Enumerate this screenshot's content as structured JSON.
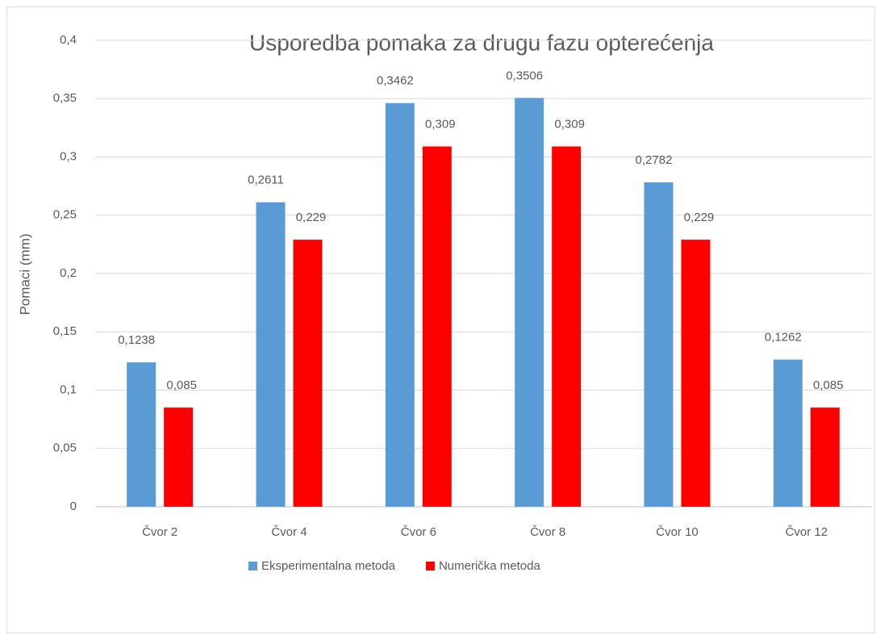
{
  "chart_data": {
    "type": "bar",
    "title": "Usporedba pomaka za drugu fazu opterećenja",
    "y_label": "Pomaci (mm)",
    "categories": [
      "Čvor 2",
      "Čvor 4",
      "Čvor 6",
      "Čvor 8",
      "Čvor 10",
      "Čvor 12"
    ],
    "series": [
      {
        "name": "Eksperimentalna metoda",
        "color": "#5b9bd5",
        "values": [
          0.1238,
          0.2611,
          0.3462,
          0.3506,
          0.2782,
          0.1262
        ],
        "value_labels": [
          "0,1238",
          "0,2611",
          "0,3462",
          "0,3506",
          "0,2782",
          "0,1262"
        ]
      },
      {
        "name": "Numerička metoda",
        "color": "#ff0000",
        "values": [
          0.085,
          0.229,
          0.309,
          0.309,
          0.229,
          0.085
        ],
        "value_labels": [
          "0,085",
          "0,229",
          "0,309",
          "0,309",
          "0,229",
          "0,085"
        ]
      }
    ],
    "ylim": [
      0,
      0.4
    ],
    "yticks": [
      0,
      {
        "value": 0.05,
        "label": "0,05"
      },
      {
        "value": 0.1,
        "label": "0,1"
      },
      {
        "value": 0.15,
        "label": "0,15"
      },
      {
        "value": 0.2,
        "label": "0,2"
      },
      {
        "value": 0.25,
        "label": "0,25"
      },
      {
        "value": 0.3,
        "label": "0,3"
      },
      {
        "value": 0.35,
        "label": "0,35"
      },
      {
        "value": 0.4,
        "label": "0,4"
      }
    ],
    "grid": true,
    "legend": "bottom"
  }
}
